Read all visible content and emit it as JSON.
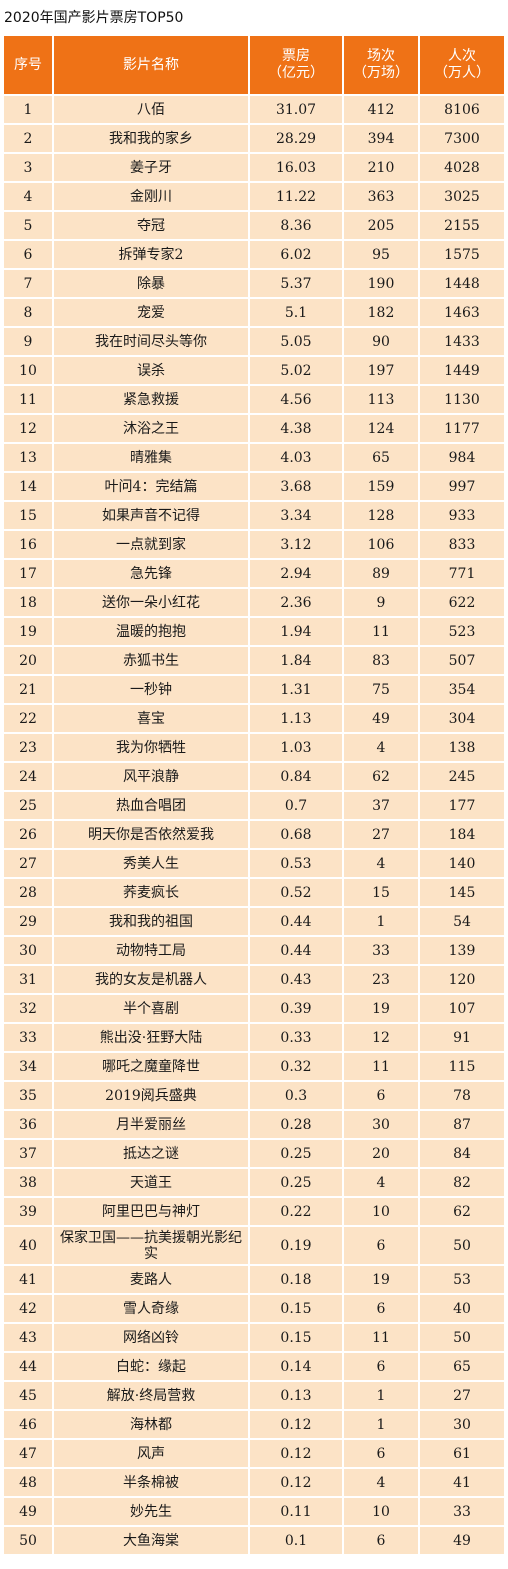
{
  "title": "2020年国产影片票房TOP50",
  "headers": {
    "rank": "序号",
    "name": "影片名称",
    "box_office": [
      "票房",
      "（亿元）"
    ],
    "screenings": [
      "场次",
      "（万场）"
    ],
    "audience": [
      "人次",
      "（万人）"
    ]
  },
  "rows": [
    [
      "1",
      "八佰",
      "31.07",
      "412",
      "8106"
    ],
    [
      "2",
      "我和我的家乡",
      "28.29",
      "394",
      "7300"
    ],
    [
      "3",
      "姜子牙",
      "16.03",
      "210",
      "4028"
    ],
    [
      "4",
      "金刚川",
      "11.22",
      "363",
      "3025"
    ],
    [
      "5",
      "夺冠",
      "8.36",
      "205",
      "2155"
    ],
    [
      "6",
      "拆弹专家2",
      "6.02",
      "95",
      "1575"
    ],
    [
      "7",
      "除暴",
      "5.37",
      "190",
      "1448"
    ],
    [
      "8",
      "宠爱",
      "5.1",
      "182",
      "1463"
    ],
    [
      "9",
      "我在时间尽头等你",
      "5.05",
      "90",
      "1433"
    ],
    [
      "10",
      "误杀",
      "5.02",
      "197",
      "1449"
    ],
    [
      "11",
      "紧急救援",
      "4.56",
      "113",
      "1130"
    ],
    [
      "12",
      "沐浴之王",
      "4.38",
      "124",
      "1177"
    ],
    [
      "13",
      "晴雅集",
      "4.03",
      "65",
      "984"
    ],
    [
      "14",
      "叶问4：完结篇",
      "3.68",
      "159",
      "997"
    ],
    [
      "15",
      "如果声音不记得",
      "3.34",
      "128",
      "933"
    ],
    [
      "16",
      "一点就到家",
      "3.12",
      "106",
      "833"
    ],
    [
      "17",
      "急先锋",
      "2.94",
      "89",
      "771"
    ],
    [
      "18",
      "送你一朵小红花",
      "2.36",
      "9",
      "622"
    ],
    [
      "19",
      "温暖的抱抱",
      "1.94",
      "11",
      "523"
    ],
    [
      "20",
      "赤狐书生",
      "1.84",
      "83",
      "507"
    ],
    [
      "21",
      "一秒钟",
      "1.31",
      "75",
      "354"
    ],
    [
      "22",
      "喜宝",
      "1.13",
      "49",
      "304"
    ],
    [
      "23",
      "我为你牺牲",
      "1.03",
      "4",
      "138"
    ],
    [
      "24",
      "风平浪静",
      "0.84",
      "62",
      "245"
    ],
    [
      "25",
      "热血合唱团",
      "0.7",
      "37",
      "177"
    ],
    [
      "26",
      "明天你是否依然爱我",
      "0.68",
      "27",
      "184"
    ],
    [
      "27",
      "秀美人生",
      "0.53",
      "4",
      "140"
    ],
    [
      "28",
      "荞麦疯长",
      "0.52",
      "15",
      "145"
    ],
    [
      "29",
      "我和我的祖国",
      "0.44",
      "1",
      "54"
    ],
    [
      "30",
      "动物特工局",
      "0.44",
      "33",
      "139"
    ],
    [
      "31",
      "我的女友是机器人",
      "0.43",
      "23",
      "120"
    ],
    [
      "32",
      "半个喜剧",
      "0.39",
      "19",
      "107"
    ],
    [
      "33",
      "熊出没·狂野大陆",
      "0.33",
      "12",
      "91"
    ],
    [
      "34",
      "哪吒之魔童降世",
      "0.32",
      "11",
      "115"
    ],
    [
      "35",
      "2019阅兵盛典",
      "0.3",
      "6",
      "78"
    ],
    [
      "36",
      "月半爱丽丝",
      "0.28",
      "30",
      "87"
    ],
    [
      "37",
      "抵达之谜",
      "0.25",
      "20",
      "84"
    ],
    [
      "38",
      "天道王",
      "0.25",
      "4",
      "82"
    ],
    [
      "39",
      "阿里巴巴与神灯",
      "0.22",
      "10",
      "62"
    ],
    [
      "40",
      "保家卫国——抗美援朝光影纪实",
      "0.19",
      "6",
      "50"
    ],
    [
      "41",
      "麦路人",
      "0.18",
      "19",
      "53"
    ],
    [
      "42",
      "雪人奇缘",
      "0.15",
      "6",
      "40"
    ],
    [
      "43",
      "网络凶铃",
      "0.15",
      "11",
      "50"
    ],
    [
      "44",
      "白蛇：缘起",
      "0.14",
      "6",
      "65"
    ],
    [
      "45",
      "解放·终局营救",
      "0.13",
      "1",
      "27"
    ],
    [
      "46",
      "海林都",
      "0.12",
      "1",
      "30"
    ],
    [
      "47",
      "风声",
      "0.12",
      "6",
      "61"
    ],
    [
      "48",
      "半条棉被",
      "0.12",
      "4",
      "41"
    ],
    [
      "49",
      "妙先生",
      "0.11",
      "10",
      "33"
    ],
    [
      "50",
      "大鱼海棠",
      "0.1",
      "6",
      "49"
    ]
  ],
  "colors": {
    "header_bg": "#ef7216",
    "cell_bg": "#fce3c6"
  }
}
